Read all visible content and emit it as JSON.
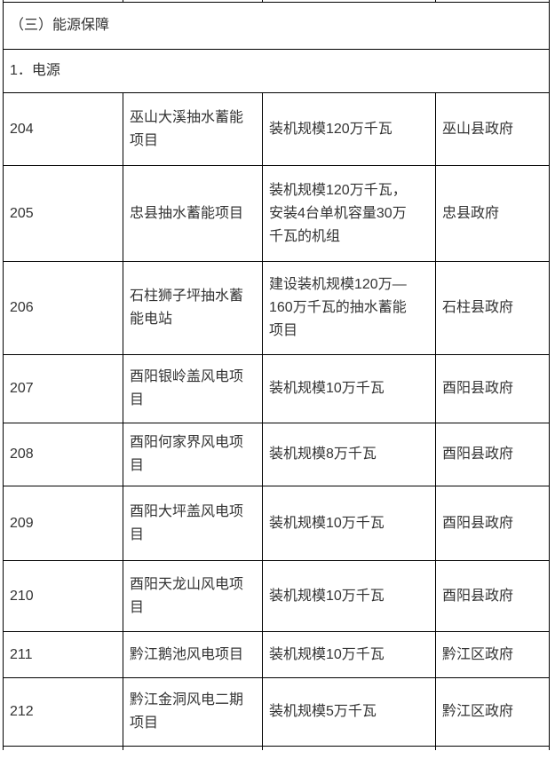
{
  "page": {
    "background_color": "#ffffff",
    "text_color": "#333333",
    "border_color": "#000000"
  },
  "table": {
    "section_header": "（三）能源保障",
    "subsection_header": "1．电源",
    "rows": [
      {
        "no": "204",
        "project": "巫山大溪抽水蓄能项目",
        "scale": "装机规模120万千瓦",
        "gov": "巫山县政府"
      },
      {
        "no": "205",
        "project": "忠县抽水蓄能项目",
        "scale": "装机规模120万千瓦，安装4台单机容量30万千瓦的机组",
        "gov": "忠县政府"
      },
      {
        "no": "206",
        "project": "石柱狮子坪抽水蓄能电站",
        "scale": "建设装机规模120万—160万千瓦的抽水蓄能项目",
        "gov": "石柱县政府"
      },
      {
        "no": "207",
        "project": "酉阳银岭盖风电项目",
        "scale": "装机规模10万千瓦",
        "gov": "酉阳县政府"
      },
      {
        "no": "208",
        "project": "酉阳何家界风电项目",
        "scale": "装机规模8万千瓦",
        "gov": "酉阳县政府"
      },
      {
        "no": "209",
        "project": "酉阳大坪盖风电项目",
        "scale": "装机规模10万千瓦",
        "gov": "酉阳县政府"
      },
      {
        "no": "210",
        "project": "酉阳天龙山风电项目",
        "scale": "装机规模10万千瓦",
        "gov": "酉阳县政府"
      },
      {
        "no": "211",
        "project": "黔江鹅池风电项目",
        "scale": "装机规模10万千瓦",
        "gov": "黔江区政府"
      },
      {
        "no": "212",
        "project": "黔江金洞风电二期项目",
        "scale": "装机规模5万千瓦",
        "gov": "黔江区政府"
      }
    ]
  }
}
